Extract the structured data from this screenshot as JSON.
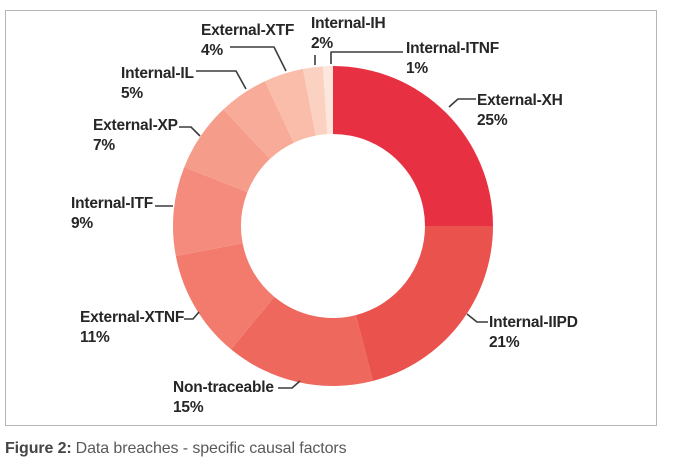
{
  "figure": {
    "caption_prefix": "Figure 2:",
    "caption_text": "Data breaches - specific causal factors"
  },
  "chart_data": {
    "type": "pie",
    "subtype": "donut",
    "title": "Data breaches - specific causal factors",
    "unit": "%",
    "start_angle_deg": 0,
    "direction": "clockwise",
    "inner_radius_ratio": 0.575,
    "legend": "none (direct slice callout labels)",
    "series": [
      {
        "name": "External-XH",
        "value": 25,
        "percent_label": "25%",
        "color": "#e73142"
      },
      {
        "name": "Internal-IIPD",
        "value": 21,
        "percent_label": "21%",
        "color": "#ea524e"
      },
      {
        "name": "Non-traceable",
        "value": 15,
        "percent_label": "15%",
        "color": "#ee685e"
      },
      {
        "name": "External-XTNF",
        "value": 11,
        "percent_label": "11%",
        "color": "#f27b6e"
      },
      {
        "name": "Internal-ITF",
        "value": 9,
        "percent_label": "9%",
        "color": "#f48b7c"
      },
      {
        "name": "External-XP",
        "value": 7,
        "percent_label": "7%",
        "color": "#f69c8a"
      },
      {
        "name": "Internal-IL",
        "value": 5,
        "percent_label": "5%",
        "color": "#f8ab98"
      },
      {
        "name": "External-XTF",
        "value": 4,
        "percent_label": "4%",
        "color": "#f9bda9"
      },
      {
        "name": "Internal-IH",
        "value": 2,
        "percent_label": "2%",
        "color": "#fbd2c2"
      },
      {
        "name": "Internal-ITNF",
        "value": 1,
        "percent_label": "1%",
        "color": "#fde6dc"
      }
    ]
  }
}
